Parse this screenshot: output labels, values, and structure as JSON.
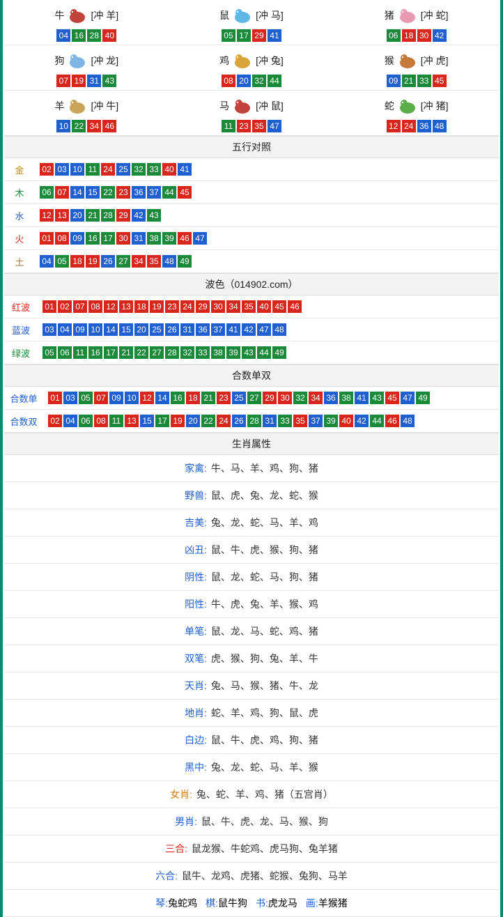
{
  "colors": {
    "red": "#d9261c",
    "blue": "#1f5fd0",
    "green": "#1a8a3a",
    "border": "#0a8a6e"
  },
  "ball_color_map": {
    "01": "red",
    "02": "red",
    "07": "red",
    "08": "red",
    "12": "red",
    "13": "red",
    "18": "red",
    "19": "red",
    "23": "red",
    "24": "red",
    "29": "red",
    "30": "red",
    "34": "red",
    "35": "red",
    "40": "red",
    "45": "red",
    "46": "red",
    "03": "blue",
    "04": "blue",
    "09": "blue",
    "10": "blue",
    "14": "blue",
    "15": "blue",
    "20": "blue",
    "25": "blue",
    "26": "blue",
    "31": "blue",
    "36": "blue",
    "37": "blue",
    "41": "blue",
    "42": "blue",
    "47": "blue",
    "48": "blue",
    "05": "green",
    "06": "green",
    "11": "green",
    "16": "green",
    "17": "green",
    "21": "green",
    "22": "green",
    "27": "green",
    "28": "green",
    "32": "green",
    "33": "green",
    "38": "green",
    "39": "green",
    "43": "green",
    "44": "green",
    "49": "green"
  },
  "zodiac_icon_colors": {
    "牛": "#c0443c",
    "鼠": "#5fb7e6",
    "猪": "#e89ab3",
    "狗": "#7fb6e6",
    "鸡": "#d9a53a",
    "猴": "#c67a3a",
    "羊": "#c9a55a",
    "马": "#c0443c",
    "蛇": "#5aae4a"
  },
  "zodiacs": [
    {
      "name": "牛",
      "chong": "[冲 羊]",
      "balls": [
        "04",
        "16",
        "28",
        "40"
      ]
    },
    {
      "name": "鼠",
      "chong": "[冲 马]",
      "balls": [
        "05",
        "17",
        "29",
        "41"
      ]
    },
    {
      "name": "猪",
      "chong": "[冲 蛇]",
      "balls": [
        "06",
        "18",
        "30",
        "42"
      ]
    },
    {
      "name": "狗",
      "chong": "[冲 龙]",
      "balls": [
        "07",
        "19",
        "31",
        "43"
      ]
    },
    {
      "name": "鸡",
      "chong": "[冲 兔]",
      "balls": [
        "08",
        "20",
        "32",
        "44"
      ]
    },
    {
      "name": "猴",
      "chong": "[冲 虎]",
      "balls": [
        "09",
        "21",
        "33",
        "45"
      ]
    },
    {
      "name": "羊",
      "chong": "[冲 牛]",
      "balls": [
        "10",
        "22",
        "34",
        "46"
      ]
    },
    {
      "name": "马",
      "chong": "[冲 鼠]",
      "balls": [
        "11",
        "23",
        "35",
        "47"
      ]
    },
    {
      "name": "蛇",
      "chong": "[冲 猪]",
      "balls": [
        "12",
        "24",
        "36",
        "48"
      ]
    }
  ],
  "sections": {
    "wuxing_title": "五行对照",
    "bose_title": "波色（014902.com）",
    "heshu_title": "合数单双",
    "shengxiao_title": "生肖属性"
  },
  "wuxing": [
    {
      "label": "金",
      "class": "cl-gold",
      "balls": [
        "02",
        "03",
        "10",
        "11",
        "24",
        "25",
        "32",
        "33",
        "40",
        "41"
      ]
    },
    {
      "label": "木",
      "class": "cl-wood",
      "balls": [
        "06",
        "07",
        "14",
        "15",
        "22",
        "23",
        "36",
        "37",
        "44",
        "45"
      ]
    },
    {
      "label": "水",
      "class": "cl-water",
      "balls": [
        "12",
        "13",
        "20",
        "21",
        "28",
        "29",
        "42",
        "43"
      ]
    },
    {
      "label": "火",
      "class": "cl-fire",
      "balls": [
        "01",
        "08",
        "09",
        "16",
        "17",
        "30",
        "31",
        "38",
        "39",
        "46",
        "47"
      ]
    },
    {
      "label": "土",
      "class": "cl-earth",
      "balls": [
        "04",
        "05",
        "18",
        "19",
        "26",
        "27",
        "34",
        "35",
        "48",
        "49"
      ]
    }
  ],
  "bose": [
    {
      "label": "红波",
      "class": "cl-redtxt",
      "balls": [
        "01",
        "02",
        "07",
        "08",
        "12",
        "13",
        "18",
        "19",
        "23",
        "24",
        "29",
        "30",
        "34",
        "35",
        "40",
        "45",
        "46"
      ]
    },
    {
      "label": "蓝波",
      "class": "cl-bluetxt",
      "balls": [
        "03",
        "04",
        "09",
        "10",
        "14",
        "15",
        "20",
        "25",
        "26",
        "31",
        "36",
        "37",
        "41",
        "42",
        "47",
        "48"
      ]
    },
    {
      "label": "绿波",
      "class": "cl-greentxt",
      "balls": [
        "05",
        "06",
        "11",
        "16",
        "17",
        "21",
        "22",
        "27",
        "28",
        "32",
        "33",
        "38",
        "39",
        "43",
        "44",
        "49"
      ]
    }
  ],
  "heshu": [
    {
      "label": "合数单",
      "class": "cl-bluetxt",
      "balls": [
        "01",
        "03",
        "05",
        "07",
        "09",
        "10",
        "12",
        "14",
        "16",
        "18",
        "21",
        "23",
        "25",
        "27",
        "29",
        "30",
        "32",
        "34",
        "36",
        "38",
        "41",
        "43",
        "45",
        "47",
        "49"
      ]
    },
    {
      "label": "合数双",
      "class": "cl-bluetxt",
      "balls": [
        "02",
        "04",
        "06",
        "08",
        "11",
        "13",
        "15",
        "17",
        "19",
        "20",
        "22",
        "24",
        "26",
        "28",
        "31",
        "33",
        "35",
        "37",
        "39",
        "40",
        "42",
        "44",
        "46",
        "48"
      ]
    }
  ],
  "attrs": [
    {
      "key": "家禽:",
      "key_class": "cl-bluetxt",
      "val": " 牛、马、羊、鸡、狗、猪"
    },
    {
      "key": "野兽:",
      "key_class": "cl-bluetxt",
      "val": " 鼠、虎、兔、龙、蛇、猴"
    },
    {
      "key": "吉美:",
      "key_class": "cl-bluetxt",
      "val": " 兔、龙、蛇、马、羊、鸡"
    },
    {
      "key": "凶丑:",
      "key_class": "cl-bluetxt",
      "val": " 鼠、牛、虎、猴、狗、猪"
    },
    {
      "key": "阴性:",
      "key_class": "cl-bluetxt",
      "val": " 鼠、龙、蛇、马、狗、猪"
    },
    {
      "key": "阳性:",
      "key_class": "cl-bluetxt",
      "val": " 牛、虎、兔、羊、猴、鸡"
    },
    {
      "key": "单笔:",
      "key_class": "cl-bluetxt",
      "val": " 鼠、龙、马、蛇、鸡、猪"
    },
    {
      "key": "双笔:",
      "key_class": "cl-bluetxt",
      "val": " 虎、猴、狗、兔、羊、牛"
    },
    {
      "key": "天肖:",
      "key_class": "cl-bluetxt",
      "val": " 兔、马、猴、猪、牛、龙"
    },
    {
      "key": "地肖:",
      "key_class": "cl-bluetxt",
      "val": " 蛇、羊、鸡、狗、鼠、虎"
    },
    {
      "key": "白边:",
      "key_class": "cl-bluetxt",
      "val": " 鼠、牛、虎、鸡、狗、猪"
    },
    {
      "key": "黑中:",
      "key_class": "cl-bluetxt",
      "val": " 兔、龙、蛇、马、羊、猴"
    },
    {
      "key": "女肖:",
      "key_class": "cl-orangetxt",
      "val": " 兔、蛇、羊、鸡、猪（五宫肖）"
    },
    {
      "key": "男肖:",
      "key_class": "cl-bluetxt",
      "val": " 鼠、牛、虎、龙、马、猴、狗"
    },
    {
      "key": "三合:",
      "key_class": "cl-redtxt",
      "val": " 鼠龙猴、牛蛇鸡、虎马狗、兔羊猪"
    },
    {
      "key": "六合:",
      "key_class": "cl-bluetxt",
      "val": " 鼠牛、龙鸡、虎猪、蛇猴、兔狗、马羊"
    }
  ],
  "four_arts": [
    {
      "k": "琴:",
      "k_class": "cl-bluetxt",
      "v": "兔蛇鸡"
    },
    {
      "k": "棋:",
      "k_class": "cl-bluetxt",
      "v": "鼠牛狗"
    },
    {
      "k": "书:",
      "k_class": "cl-bluetxt",
      "v": "虎龙马"
    },
    {
      "k": "画:",
      "k_class": "cl-bluetxt",
      "v": "羊猴猪"
    }
  ]
}
